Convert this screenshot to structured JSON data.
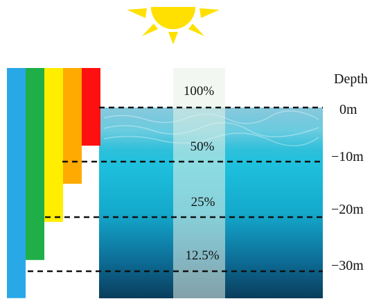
{
  "title": "",
  "depth_header": "Depth",
  "depth_labels": [
    "0m",
    "−10m",
    "−20m",
    "−30m"
  ],
  "light_percentages": [
    "100%",
    "50%",
    "25%",
    "12.5%"
  ],
  "light_bars": [
    {
      "color": "#29a8e8",
      "reaches_depth_m": 35
    },
    {
      "color": "#1fae48",
      "reaches_depth_m": 28
    },
    {
      "color": "#ffee00",
      "reaches_depth_m": 21
    },
    {
      "color": "#ffaa00",
      "reaches_depth_m": 14
    },
    {
      "color": "#ff1010",
      "reaches_depth_m": 7
    }
  ],
  "colors": {
    "sun": "#ffe000",
    "water_top": "#3fb6d2",
    "water_mid": "#19b8d6",
    "water_bottom": "#0e4a6a",
    "column": "#e8f2e6",
    "dash": "#111111"
  }
}
